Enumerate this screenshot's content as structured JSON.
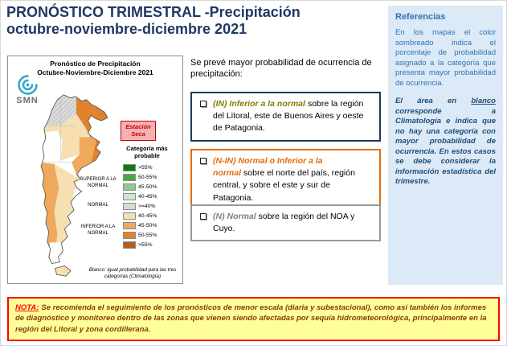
{
  "header": {
    "title_line1": "PRONÓSTICO TRIMESTRAL -Precipitación",
    "title_line2": "octubre-noviembre-diciembre 2021",
    "title_color": "#1F3864"
  },
  "map_panel": {
    "title_line1": "Pronóstico de Precipitación",
    "title_line2": "Octubre-Noviembre-Diciembre 2021",
    "logo_label": "SMN",
    "dry_season_label": "Estación Seca",
    "legend": {
      "title": "Categoría más probable",
      "groups": {
        "superior": "SUPERIOR A LA NORMAL",
        "normal": "NORMAL",
        "inferior": "INFERIOR A LA NORMAL"
      },
      "rows": [
        {
          "label": ">55%",
          "color": "#0F7A0F"
        },
        {
          "label": "50-55%",
          "color": "#46A846"
        },
        {
          "label": "45-50%",
          "color": "#8FCB8F"
        },
        {
          "label": "40-45%",
          "color": "#CFE9CF"
        },
        {
          "label": ">=40%",
          "color": "#D9D9D9"
        },
        {
          "label": "40-45%",
          "color": "#F6E0B2"
        },
        {
          "label": "45-50%",
          "color": "#F0A95C"
        },
        {
          "label": "50-55%",
          "color": "#E2822B"
        },
        {
          "label": ">55%",
          "color": "#B65C1F"
        }
      ]
    },
    "footnote": "Blanco: igual probabilidad para las tres categorías (Climatología)"
  },
  "forecast": {
    "intro": "Se prevé mayor probabilidad de ocurrencia de precipitación:",
    "items": [
      {
        "tag": "(IN) Inferior a la normal",
        "text": "sobre la región del Litoral, este de Buenos Aires y oeste de Patagonia.",
        "accent": "#808000",
        "border": "#1F3864"
      },
      {
        "tag": "(N-IN) Normal o Inferior a la normal",
        "text": "sobre el norte del país, región central, y sobre el este y sur de Patagonia.",
        "accent": "#E36C0A",
        "border": "#E36C0A"
      },
      {
        "tag": "(N) Normal",
        "text": "sobre la región del NOA y Cuyo.",
        "accent": "#808080",
        "border": "#999999"
      }
    ]
  },
  "references": {
    "title": "Referencias",
    "title_color": "#2E74B5",
    "body": "En los mapas el color sombreado indica el porcentaje de probabilidad asignado a la categoría que presenta mayor probabilidad de ocurrencia.",
    "emphasis_pre": "El área en ",
    "emphasis_underlined": "blanco",
    "emphasis_post": " corresponde a Climatología e indica que no hay una categoría con mayor probabilidad de ocurrencia. En estos casos se debe considerar la información estadística del trimestre."
  },
  "note": {
    "label": "NOTA:",
    "text": "Se recomienda el seguimiento de los pronósticos de menor escala (diaria y subestacional), como así también los informes de diagnóstico y monitoreo dentro de las zonas que vienen siendo afectadas por sequía hidrometeorológica, principalmente en la región del Litoral y zona cordillerana.",
    "bg": "#FFFF99",
    "border": "#FF0000",
    "label_color": "#FF0000",
    "text_color": "#843C0C"
  }
}
